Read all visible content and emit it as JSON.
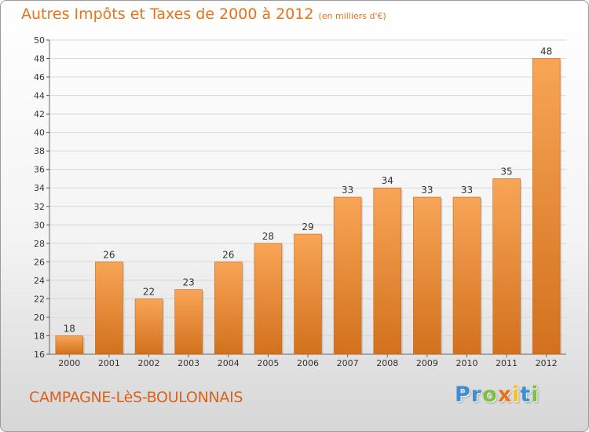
{
  "header": {
    "title": "Autres Impôts et Taxes de 2000 à 2012",
    "unit": "(en milliers d'€)"
  },
  "footer": {
    "commune": "CAMPAGNE-LèS-BOULONNAIS",
    "logo": {
      "letters": [
        {
          "char": "P",
          "color": "#3a8fd6"
        },
        {
          "char": "r",
          "color": "#3a8fd6"
        },
        {
          "char": "o",
          "color": "#7bc043"
        },
        {
          "char": "x",
          "color": "#e8731a"
        },
        {
          "char": "i",
          "color": "#f4c21b"
        },
        {
          "char": "t",
          "color": "#3a8fd6"
        },
        {
          "char": "i",
          "color": "#7bc043"
        }
      ]
    }
  },
  "colors": {
    "bar_top": "#f8a557",
    "bar_bottom": "#d2711d",
    "title": "#e8731a",
    "grid": "#d8d8d8"
  },
  "chart_data": {
    "type": "bar",
    "title": "Autres Impôts et Taxes de 2000 à 2012",
    "subtitle": "(en milliers d'€)",
    "categories": [
      "2000",
      "2001",
      "2002",
      "2003",
      "2004",
      "2005",
      "2006",
      "2007",
      "2008",
      "2009",
      "2010",
      "2011",
      "2012"
    ],
    "values": [
      18,
      26,
      22,
      23,
      26,
      28,
      29,
      33,
      34,
      33,
      33,
      35,
      48
    ],
    "data_labels": [
      "18",
      "26",
      "22",
      "23",
      "26",
      "28",
      "29",
      "33",
      "34",
      "33",
      "33",
      "35",
      "48"
    ],
    "ylim": [
      16,
      50
    ],
    "yticks": [
      16,
      18,
      20,
      22,
      24,
      26,
      28,
      30,
      32,
      34,
      36,
      38,
      40,
      42,
      44,
      46,
      48,
      50
    ],
    "ytick_labels": [
      "16",
      "18",
      "20",
      "22",
      "24",
      "26",
      "28",
      "30",
      "32",
      "34",
      "36",
      "38",
      "40",
      "42",
      "44",
      "46",
      "48",
      "50"
    ],
    "grid": true,
    "legend": "none"
  }
}
